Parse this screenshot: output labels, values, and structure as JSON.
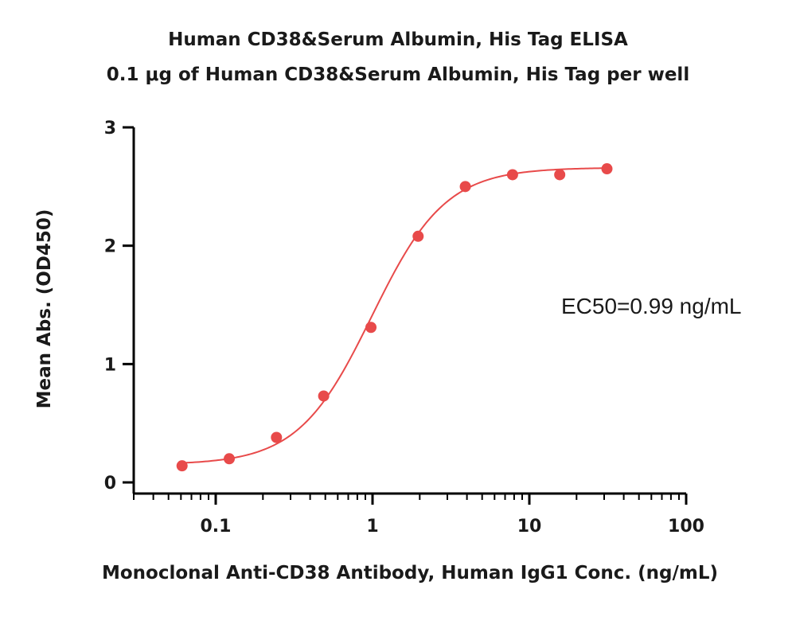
{
  "chart_data": {
    "type": "scatter",
    "title": "Human CD38&Serum Albumin, His Tag ELISA",
    "subtitle": "0.1 μg of Human CD38&Serum Albumin, His Tag per well",
    "xlabel": "Monoclonal Anti-CD38 Antibody, Human IgG1 Conc. (ng/mL)",
    "ylabel": "Mean Abs. (OD450)",
    "x_scale": "log",
    "xlim": [
      0.03,
      100
    ],
    "ylim": [
      0,
      3
    ],
    "x_ticks": [
      0.1,
      1,
      10,
      100
    ],
    "x_tick_labels": [
      "0.1",
      "1",
      "10",
      "100"
    ],
    "y_ticks": [
      0,
      1,
      2,
      3
    ],
    "y_tick_labels": [
      "0",
      "1",
      "2",
      "3"
    ],
    "grid": false,
    "annotation": "EC50=0.99 ng/mL",
    "colors": {
      "series": "#e84a4a",
      "axis": "#000000"
    },
    "series": [
      {
        "x": [
          0.061,
          0.122,
          0.244,
          0.488,
          0.977,
          1.953,
          3.906,
          7.813,
          15.625,
          31.25
        ],
        "y": [
          0.14,
          0.2,
          0.38,
          0.73,
          1.31,
          2.08,
          2.5,
          2.6,
          2.6,
          2.65
        ]
      }
    ],
    "fit": {
      "model": "4PL",
      "bottom": 0.15,
      "top": 2.66,
      "ec50": 0.99,
      "hill": 1.85
    }
  }
}
